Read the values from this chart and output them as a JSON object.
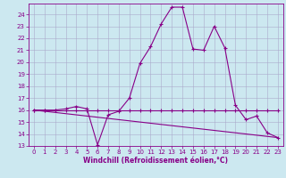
{
  "xlabel": "Windchill (Refroidissement éolien,°C)",
  "background_color": "#cce8f0",
  "grid_color": "#aaaacc",
  "line_color": "#880088",
  "spine_color": "#880088",
  "xlim": [
    -0.5,
    23.5
  ],
  "ylim": [
    13,
    24.9
  ],
  "yticks": [
    13,
    14,
    15,
    16,
    17,
    18,
    19,
    20,
    21,
    22,
    23,
    24
  ],
  "xticks": [
    0,
    1,
    2,
    3,
    4,
    5,
    6,
    7,
    8,
    9,
    10,
    11,
    12,
    13,
    14,
    15,
    16,
    17,
    18,
    19,
    20,
    21,
    22,
    23
  ],
  "line1_x": [
    0,
    1,
    2,
    3,
    4,
    5,
    6,
    7,
    8,
    9,
    10,
    11,
    12,
    13,
    14,
    15,
    16,
    17,
    18,
    19,
    20,
    21,
    22,
    23
  ],
  "line1_y": [
    16.0,
    16.0,
    16.0,
    16.1,
    16.3,
    16.1,
    13.1,
    15.6,
    15.9,
    17.0,
    19.9,
    21.3,
    23.2,
    24.6,
    24.6,
    21.1,
    21.0,
    23.0,
    21.2,
    16.4,
    15.2,
    15.5,
    14.1,
    13.7
  ],
  "line2_x": [
    0,
    1,
    2,
    3,
    4,
    5,
    6,
    7,
    8,
    9,
    10,
    11,
    12,
    13,
    14,
    15,
    16,
    17,
    18,
    19,
    20,
    21,
    22,
    23
  ],
  "line2_y": [
    16.0,
    16.0,
    16.0,
    16.0,
    16.0,
    16.0,
    16.0,
    16.0,
    16.0,
    16.0,
    16.0,
    16.0,
    16.0,
    16.0,
    16.0,
    16.0,
    16.0,
    16.0,
    16.0,
    16.0,
    16.0,
    16.0,
    16.0,
    16.0
  ],
  "line3_x": [
    0,
    23
  ],
  "line3_y": [
    16.0,
    13.7
  ],
  "marker": "+",
  "markersize": 3,
  "markeredgewidth": 0.8,
  "linewidth": 0.8,
  "tick_labelsize": 5,
  "xlabel_fontsize": 5.5,
  "xlabel_fontweight": "bold"
}
